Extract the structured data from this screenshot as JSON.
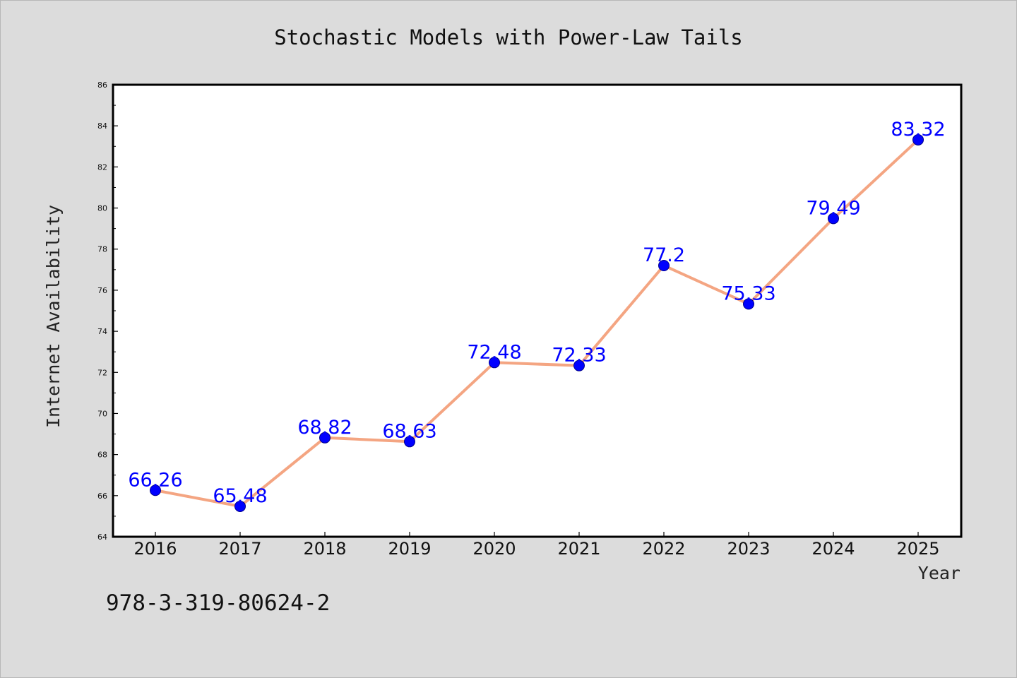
{
  "chart_data": {
    "type": "line",
    "title": "Stochastic Models with Power-Law Tails",
    "xlabel": "Year",
    "ylabel": "Internet Availability",
    "x": [
      "2016",
      "2017",
      "2018",
      "2019",
      "2020",
      "2021",
      "2022",
      "2023",
      "2024",
      "2025"
    ],
    "series": [
      {
        "values": [
          66.26,
          65.48,
          68.82,
          68.63,
          72.48,
          72.33,
          77.2,
          75.33,
          79.49,
          83.32
        ],
        "labels": [
          "66.26",
          "65.48",
          "68.82",
          "68.63",
          "72.48",
          "72.33",
          "77.2",
          "75.33",
          "79.49",
          "83.32"
        ],
        "line_color": "#f4a582",
        "marker_color": "#0000ff"
      }
    ],
    "ylim": [
      64,
      86
    ],
    "yticks": [
      "64",
      "66",
      "68",
      "70",
      "72",
      "74",
      "76",
      "78",
      "80",
      "82",
      "84",
      "86"
    ],
    "grid": false,
    "legend": "none"
  },
  "footer": {
    "isbn": "978-3-319-80624-2"
  },
  "colors": {
    "background": "#dcdcdc",
    "plot_area": "#ffffff",
    "line": "#f4a582",
    "marker": "#0000ff",
    "data_label": "#0000ff"
  }
}
